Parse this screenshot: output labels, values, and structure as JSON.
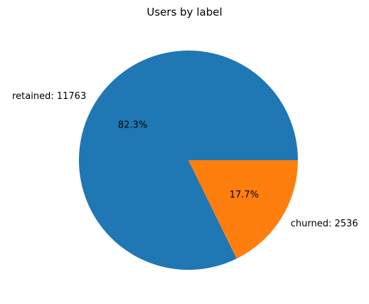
{
  "chart_data": {
    "type": "pie",
    "title": "Users by label",
    "slices": [
      {
        "label": "retained",
        "value": 11763,
        "percent_label": "82.3%",
        "color": "#1f77b4"
      },
      {
        "label": "churned",
        "value": 2536,
        "percent_label": "17.7%",
        "color": "#ff7f0e"
      }
    ],
    "start_angle_deg": 0,
    "direction": "counterclockwise",
    "legend": "none"
  }
}
